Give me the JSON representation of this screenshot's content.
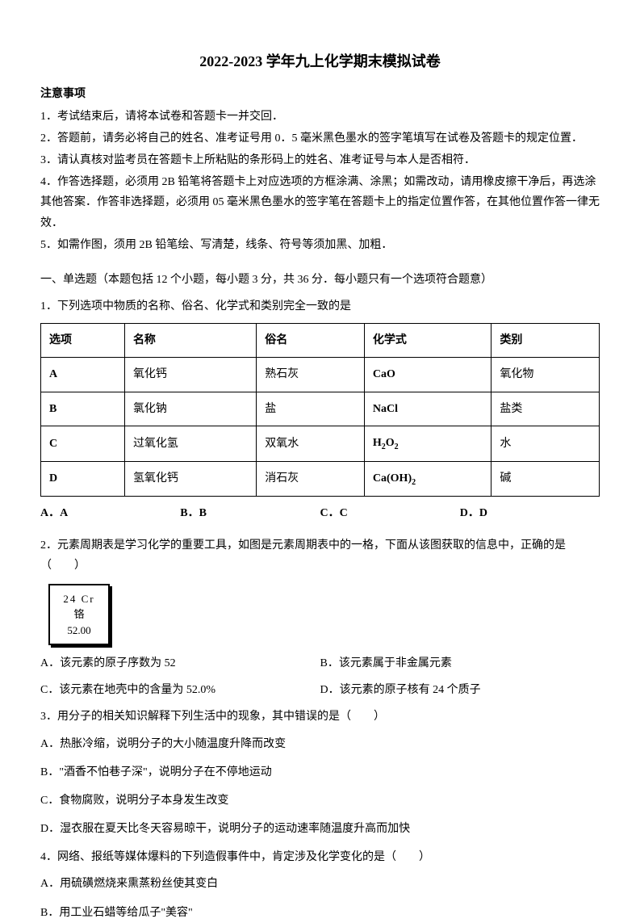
{
  "title": "2022-2023 学年九上化学期末模拟试卷",
  "notice": {
    "header": "注意事项",
    "items": [
      "1．考试结束后，请将本试卷和答题卡一并交回．",
      "2．答题前，请务必将自己的姓名、准考证号用 0．5 毫米黑色墨水的签字笔填写在试卷及答题卡的规定位置．",
      "3．请认真核对监考员在答题卡上所粘贴的条形码上的姓名、准考证号与本人是否相符．",
      "4．作答选择题，必须用 2B 铅笔将答题卡上对应选项的方框涂满、涂黑；如需改动，请用橡皮擦干净后，再选涂其他答案．作答非选择题，必须用 05 毫米黑色墨水的签字笔在答题卡上的指定位置作答，在其他位置作答一律无效．",
      "5．如需作图，须用 2B 铅笔绘、写清楚，线条、符号等须加黑、加粗．"
    ]
  },
  "section1": {
    "header": "一、单选题（本题包括 12 个小题，每小题 3 分，共 36 分．每小题只有一个选项符合题意）"
  },
  "q1": {
    "text": "1．下列选项中物质的名称、俗名、化学式和类别完全一致的是",
    "table": {
      "headers": [
        "选项",
        "名称",
        "俗名",
        "化学式",
        "类别"
      ],
      "rows": [
        [
          "A",
          "氧化钙",
          "熟石灰",
          "CaO",
          "氧化物"
        ],
        [
          "B",
          "氯化钠",
          "盐",
          "NaCl",
          "盐类"
        ],
        [
          "C",
          "过氧化氢",
          "双氧水",
          "H2O2",
          "水"
        ],
        [
          "D",
          "氢氧化钙",
          "消石灰",
          "Ca(OH)2",
          "碱"
        ]
      ]
    },
    "options": [
      "A．A",
      "B．B",
      "C．C",
      "D．D"
    ]
  },
  "q2": {
    "text": "2．元素周期表是学习化学的重要工具，如图是元素周期表中的一格，下面从该图获取的信息中，正确的是（　　）",
    "element": {
      "line1": "24   Cr",
      "line2": "铬",
      "line3": "52.00"
    },
    "optA": "A．该元素的原子序数为 52",
    "optB": "B．该元素属于非金属元素",
    "optC": "C．该元素在地壳中的含量为 52.0%",
    "optD": "D．该元素的原子核有 24 个质子"
  },
  "q3": {
    "text": "3．用分子的相关知识解释下列生活中的现象，其中错误的是（　　）",
    "optA": "A．热胀冷缩，说明分子的大小随温度升降而改变",
    "optB": "B．\"酒香不怕巷子深\"，说明分子在不停地运动",
    "optC": "C．食物腐败，说明分子本身发生改变",
    "optD": "D．湿衣服在夏天比冬天容易晾干，说明分子的运动速率随温度升高而加快"
  },
  "q4": {
    "text": "4．网络、报纸等媒体爆料的下列造假事件中，肯定涉及化学变化的是（　　）",
    "optA": "A．用硫磺燃烧来熏蒸粉丝使其变白",
    "optB": "B．用工业石蜡等给瓜子\"美容\""
  }
}
